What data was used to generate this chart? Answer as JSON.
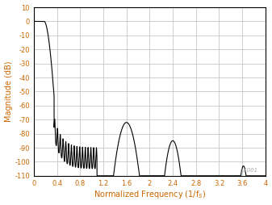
{
  "title": "",
  "xlabel": "Normalized Frequency (1/f$_S$)",
  "ylabel": "Magnitude (dB)",
  "xlim": [
    0,
    4
  ],
  "ylim": [
    -110,
    10
  ],
  "xticks": [
    0,
    0.4,
    0.8,
    1.2,
    1.6,
    2.0,
    2.4,
    2.8,
    3.2,
    3.6,
    4.0
  ],
  "yticks": [
    10,
    0,
    -10,
    -20,
    -30,
    -40,
    -50,
    -60,
    -70,
    -80,
    -90,
    -100,
    -110
  ],
  "grid_color": "#bbbbbb",
  "line_color": "#000000",
  "axis_label_color": "#cc6600",
  "background_color": "#ffffff",
  "watermark": "LX001"
}
